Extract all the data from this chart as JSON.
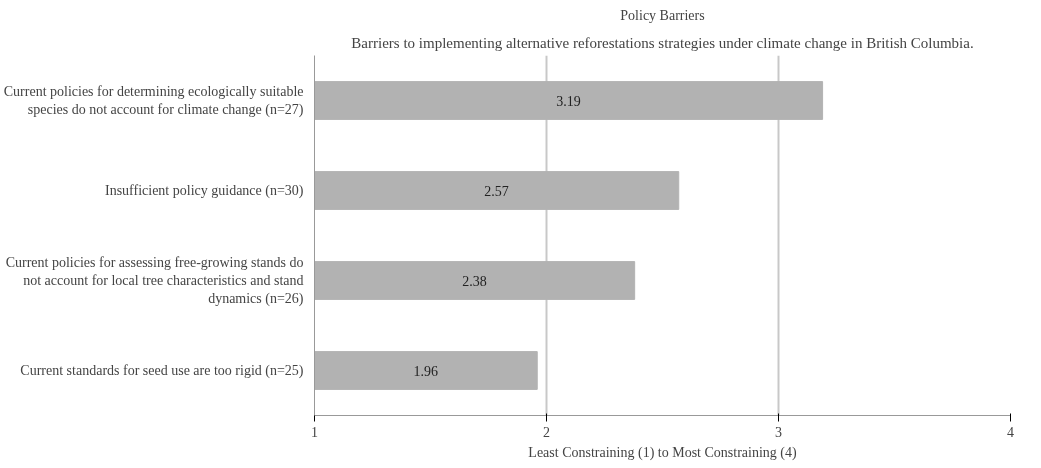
{
  "chart_data": {
    "type": "bar",
    "orientation": "horizontal",
    "title": "Policy Barriers",
    "xlabel": "Least Constraining (1) to Most Constraining (4)",
    "annotations": [
      "Barriers to implementing alternative reforestations strategies under climate change in British Columbia."
    ],
    "categories": [
      "Current policies for determining ecologically suitable species do not account for climate change (n=27)",
      "Insufficient policy guidance (n=30)",
      "Current policies for assessing free-growing stands do not account for local tree characteristics and stand dynamics (n=26)",
      "Current standards for seed use are too rigid (n=25)"
    ],
    "values": [
      3.19,
      2.57,
      2.38,
      1.96
    ],
    "color": "#b2b2b2",
    "data_labels": true,
    "xlim": [
      1,
      4
    ],
    "xticks": [
      1,
      2,
      3,
      4
    ],
    "grid": "x"
  }
}
